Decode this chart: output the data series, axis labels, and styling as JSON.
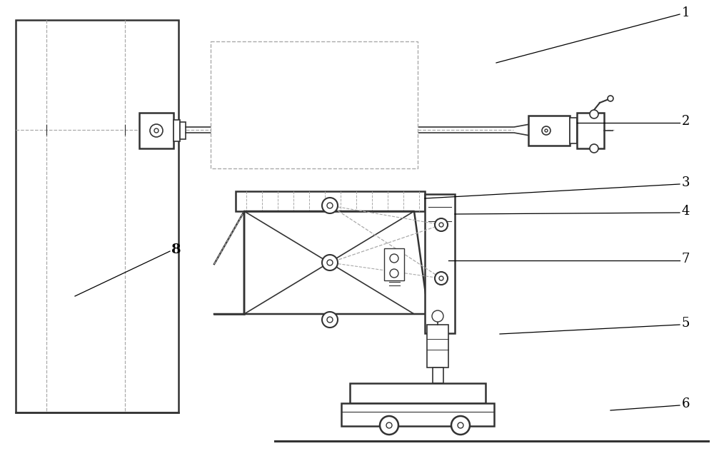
{
  "line_color": "#333333",
  "dashed_color": "#aaaaaa",
  "lw": 1.2,
  "lw2": 1.8
}
